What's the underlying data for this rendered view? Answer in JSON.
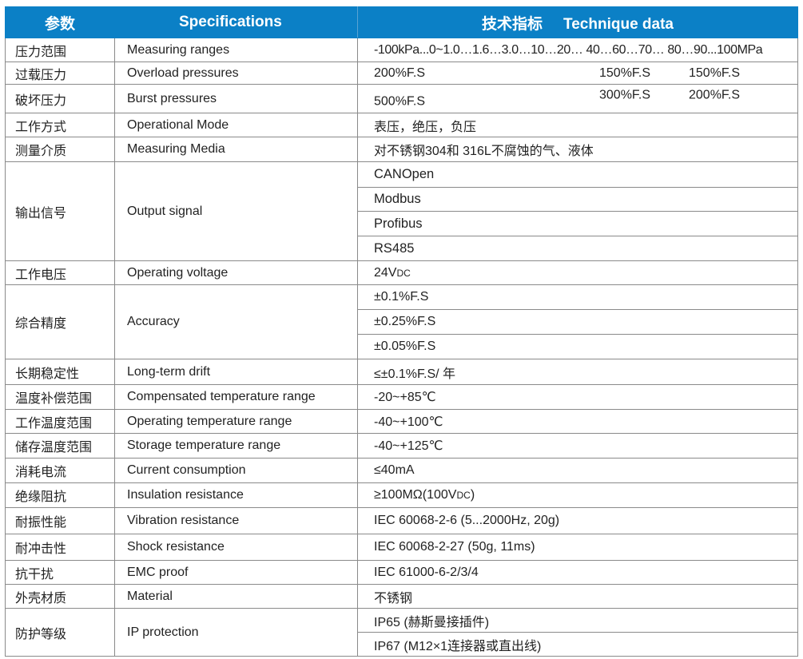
{
  "header": {
    "param": "参数",
    "specifications": "Specifications",
    "tech_cn": "技术指标",
    "tech_en": "Technique data",
    "color": "#0b80c6"
  },
  "rows": [
    {
      "cn": "压力范围",
      "en": "Measuring ranges",
      "values": [
        "-100kPa...0~1.0…1.6…3.0…10…20… 40…60…70… 80…90...100MPa"
      ]
    },
    {
      "cn": "过载压力",
      "en": "Overload pressures",
      "values": [
        "200%F.S",
        "150%F.S",
        "150%F.S"
      ]
    },
    {
      "cn": "破坏压力",
      "en": "Burst pressures",
      "values": [
        "500%F.S",
        "300%F.S",
        "200%F.S"
      ]
    },
    {
      "cn": "工作方式",
      "en": "Operational Mode",
      "values": [
        "表压，绝压，负压"
      ]
    },
    {
      "cn": "测量介质",
      "en": "Measuring Media",
      "values": [
        "对不锈钢304和 316L不腐蚀的气、液体"
      ]
    },
    {
      "cn": "输出信号",
      "en": "Output signal",
      "values": [
        "CANOpen",
        "Modbus",
        "Profibus",
        "RS485"
      ]
    },
    {
      "cn": "工作电压",
      "en": "Operating voltage",
      "values": [
        "24V"
      ],
      "suffix": "DC"
    },
    {
      "cn": "综合精度",
      "en": "Accuracy",
      "values": [
        "±0.1%F.S",
        "±0.25%F.S",
        "±0.05%F.S"
      ]
    },
    {
      "cn": "长期稳定性",
      "en": "Long-term drift",
      "values": [
        "≤±0.1%F.S/ 年"
      ]
    },
    {
      "cn": "温度补偿范围",
      "en": "Compensated temperature range",
      "values": [
        "-20~+85℃"
      ]
    },
    {
      "cn": "工作温度范围",
      "en": "Operating temperature range",
      "values": [
        "-40~+100℃"
      ]
    },
    {
      "cn": "储存温度范围",
      "en": "Storage temperature range",
      "values": [
        "-40~+125℃"
      ]
    },
    {
      "cn": "消耗电流",
      "en": "Current consumption",
      "values": [
        "≤40mA"
      ]
    },
    {
      "cn": "绝缘阻抗",
      "en": "Insulation resistance",
      "values": [
        "≥100MΩ(100V"
      ],
      "suffix": "DC",
      "tail": ")"
    },
    {
      "cn": "耐振性能",
      "en": "Vibration resistance",
      "values": [
        "IEC 60068-2-6 (5...2000Hz, 20g)"
      ]
    },
    {
      "cn": "耐冲击性",
      "en": "Shock resistance",
      "values": [
        "IEC 60068-2-27 (50g, 11ms)"
      ]
    },
    {
      "cn": "抗干扰",
      "en": "EMC proof",
      "values": [
        "IEC 61000-6-2/3/4"
      ]
    },
    {
      "cn": "外壳材质",
      "en": "Material",
      "values": [
        "不锈钢"
      ]
    },
    {
      "cn": "防护等级",
      "en": "IP protection",
      "values": [
        "IP65 (赫斯曼接插件)",
        "IP67 (M12×1连接器或直出线)"
      ]
    }
  ]
}
